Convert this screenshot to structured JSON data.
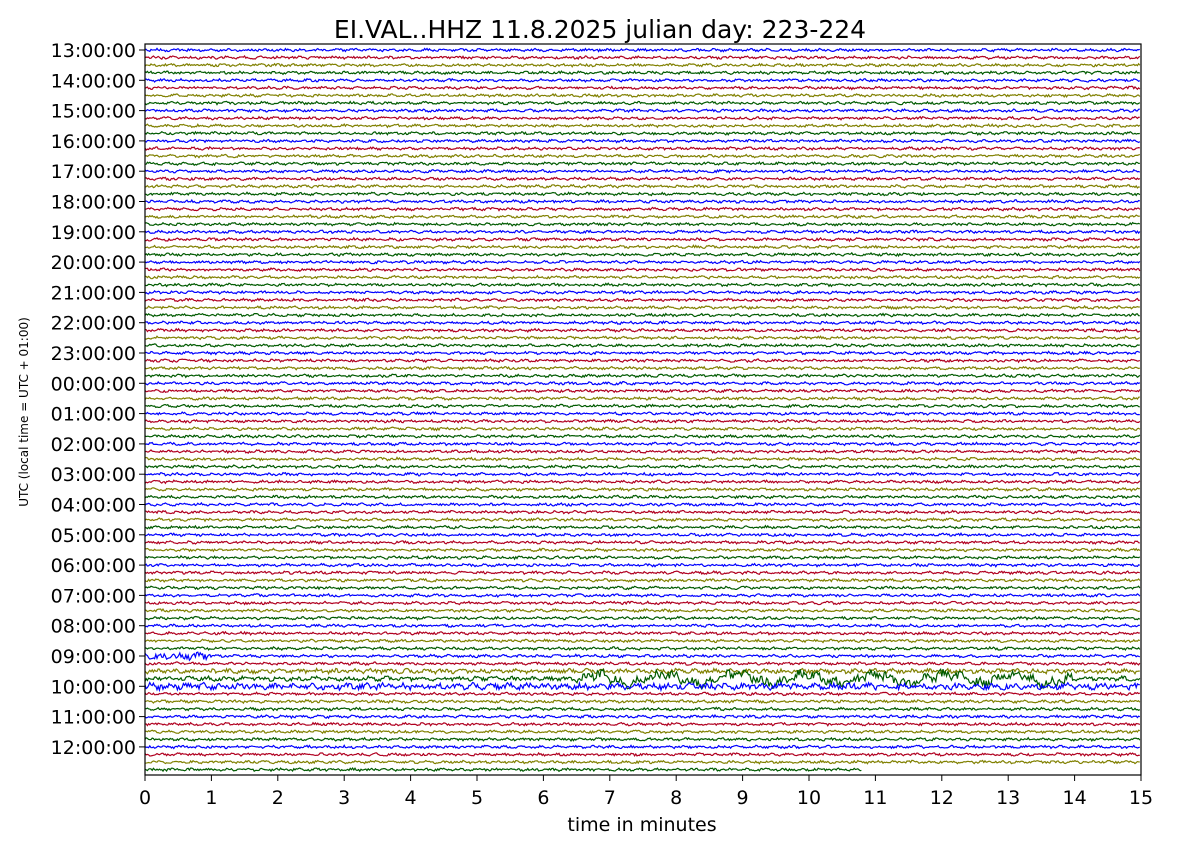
{
  "chart_data": {
    "type": "line",
    "title": "EI.VAL..HHZ   11.8.2025   julian day: 223-224",
    "xlabel": "time in minutes",
    "ylabel": "UTC (local time = UTC + 01:00)",
    "xlim": [
      0,
      15
    ],
    "x_ticks": [
      0,
      1,
      2,
      3,
      4,
      5,
      6,
      7,
      8,
      9,
      10,
      11,
      12,
      13,
      14,
      15
    ],
    "y_ticks": [
      "13:00:00",
      "14:00:00",
      "15:00:00",
      "16:00:00",
      "17:00:00",
      "18:00:00",
      "19:00:00",
      "20:00:00",
      "21:00:00",
      "22:00:00",
      "23:00:00",
      "00:00:00",
      "01:00:00",
      "02:00:00",
      "03:00:00",
      "04:00:00",
      "05:00:00",
      "06:00:00",
      "07:00:00",
      "08:00:00",
      "09:00:00",
      "10:00:00",
      "11:00:00",
      "12:00:00"
    ],
    "traces_per_hour": 4,
    "minutes_per_trace": 15,
    "last_trace_end_minute": 10.8,
    "trace_colors": [
      "#0000ff",
      "#b00020",
      "#808000",
      "#005a00"
    ],
    "grid": false,
    "legend": "none",
    "notes": "Helicorder plot: one 15-minute seismogram per row, 4 rows per hour, colors cycle blue, red, olive, dark green. Elevated signal amplitude visible around 09:30-10:00 UTC between roughly 6.5 and 14 minutes."
  }
}
